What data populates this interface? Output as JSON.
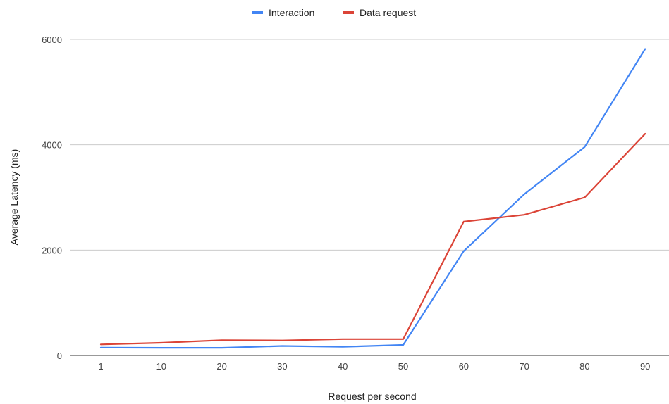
{
  "chart_data": {
    "type": "line",
    "title": "",
    "xlabel": "Request per second",
    "ylabel": "Average Latency (ms)",
    "categories": [
      "1",
      "10",
      "20",
      "30",
      "40",
      "50",
      "60",
      "70",
      "80",
      "90"
    ],
    "ylim": [
      0,
      6000
    ],
    "yticks": [
      "0",
      "2000",
      "4000",
      "6000"
    ],
    "grid": true,
    "legend_position": "top",
    "series": [
      {
        "name": "Interaction",
        "color": "#4285f4",
        "values": [
          150,
          145,
          145,
          180,
          165,
          200,
          1980,
          3060,
          3960,
          5820
        ]
      },
      {
        "name": "Data request",
        "color": "#db4437",
        "values": [
          210,
          240,
          290,
          285,
          310,
          310,
          2540,
          2670,
          3000,
          4210
        ]
      }
    ]
  }
}
